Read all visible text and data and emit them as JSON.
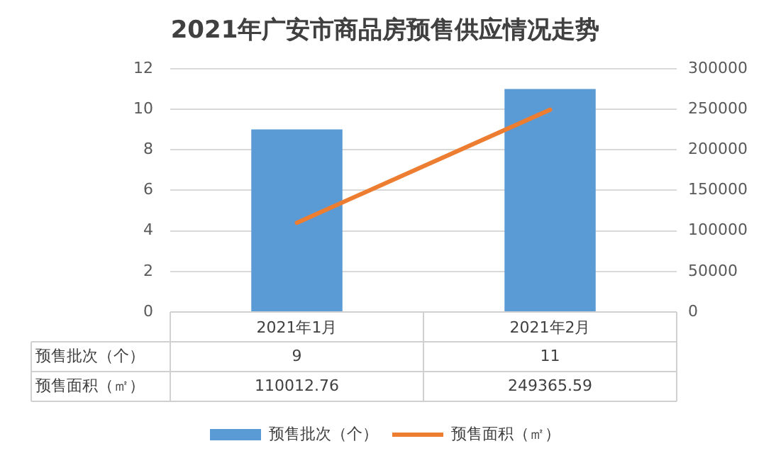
{
  "chart_data": {
    "type": "bar",
    "title": "2021年广安市商品房预售供应情况走势",
    "categories": [
      "2021年1月",
      "2021年2月"
    ],
    "series": [
      {
        "name": "预售批次（个）",
        "color": "#5b9bd5",
        "values": [
          9,
          11
        ]
      },
      {
        "name": "预售面积（㎡）",
        "type": "line",
        "axis": "y2",
        "color": "#ed7d31",
        "values": [
          110012.76,
          249365.59
        ]
      }
    ],
    "ylim": [
      0,
      12
    ],
    "yticks": [
      0,
      2,
      4,
      6,
      8,
      10,
      12
    ],
    "y2lim": [
      0,
      300000
    ],
    "y2ticks": [
      0,
      50000,
      100000,
      150000,
      200000,
      250000,
      300000
    ],
    "grid": "y",
    "legend": "bottom",
    "data_labels": true,
    "marker": "none",
    "line_style": "solid"
  }
}
